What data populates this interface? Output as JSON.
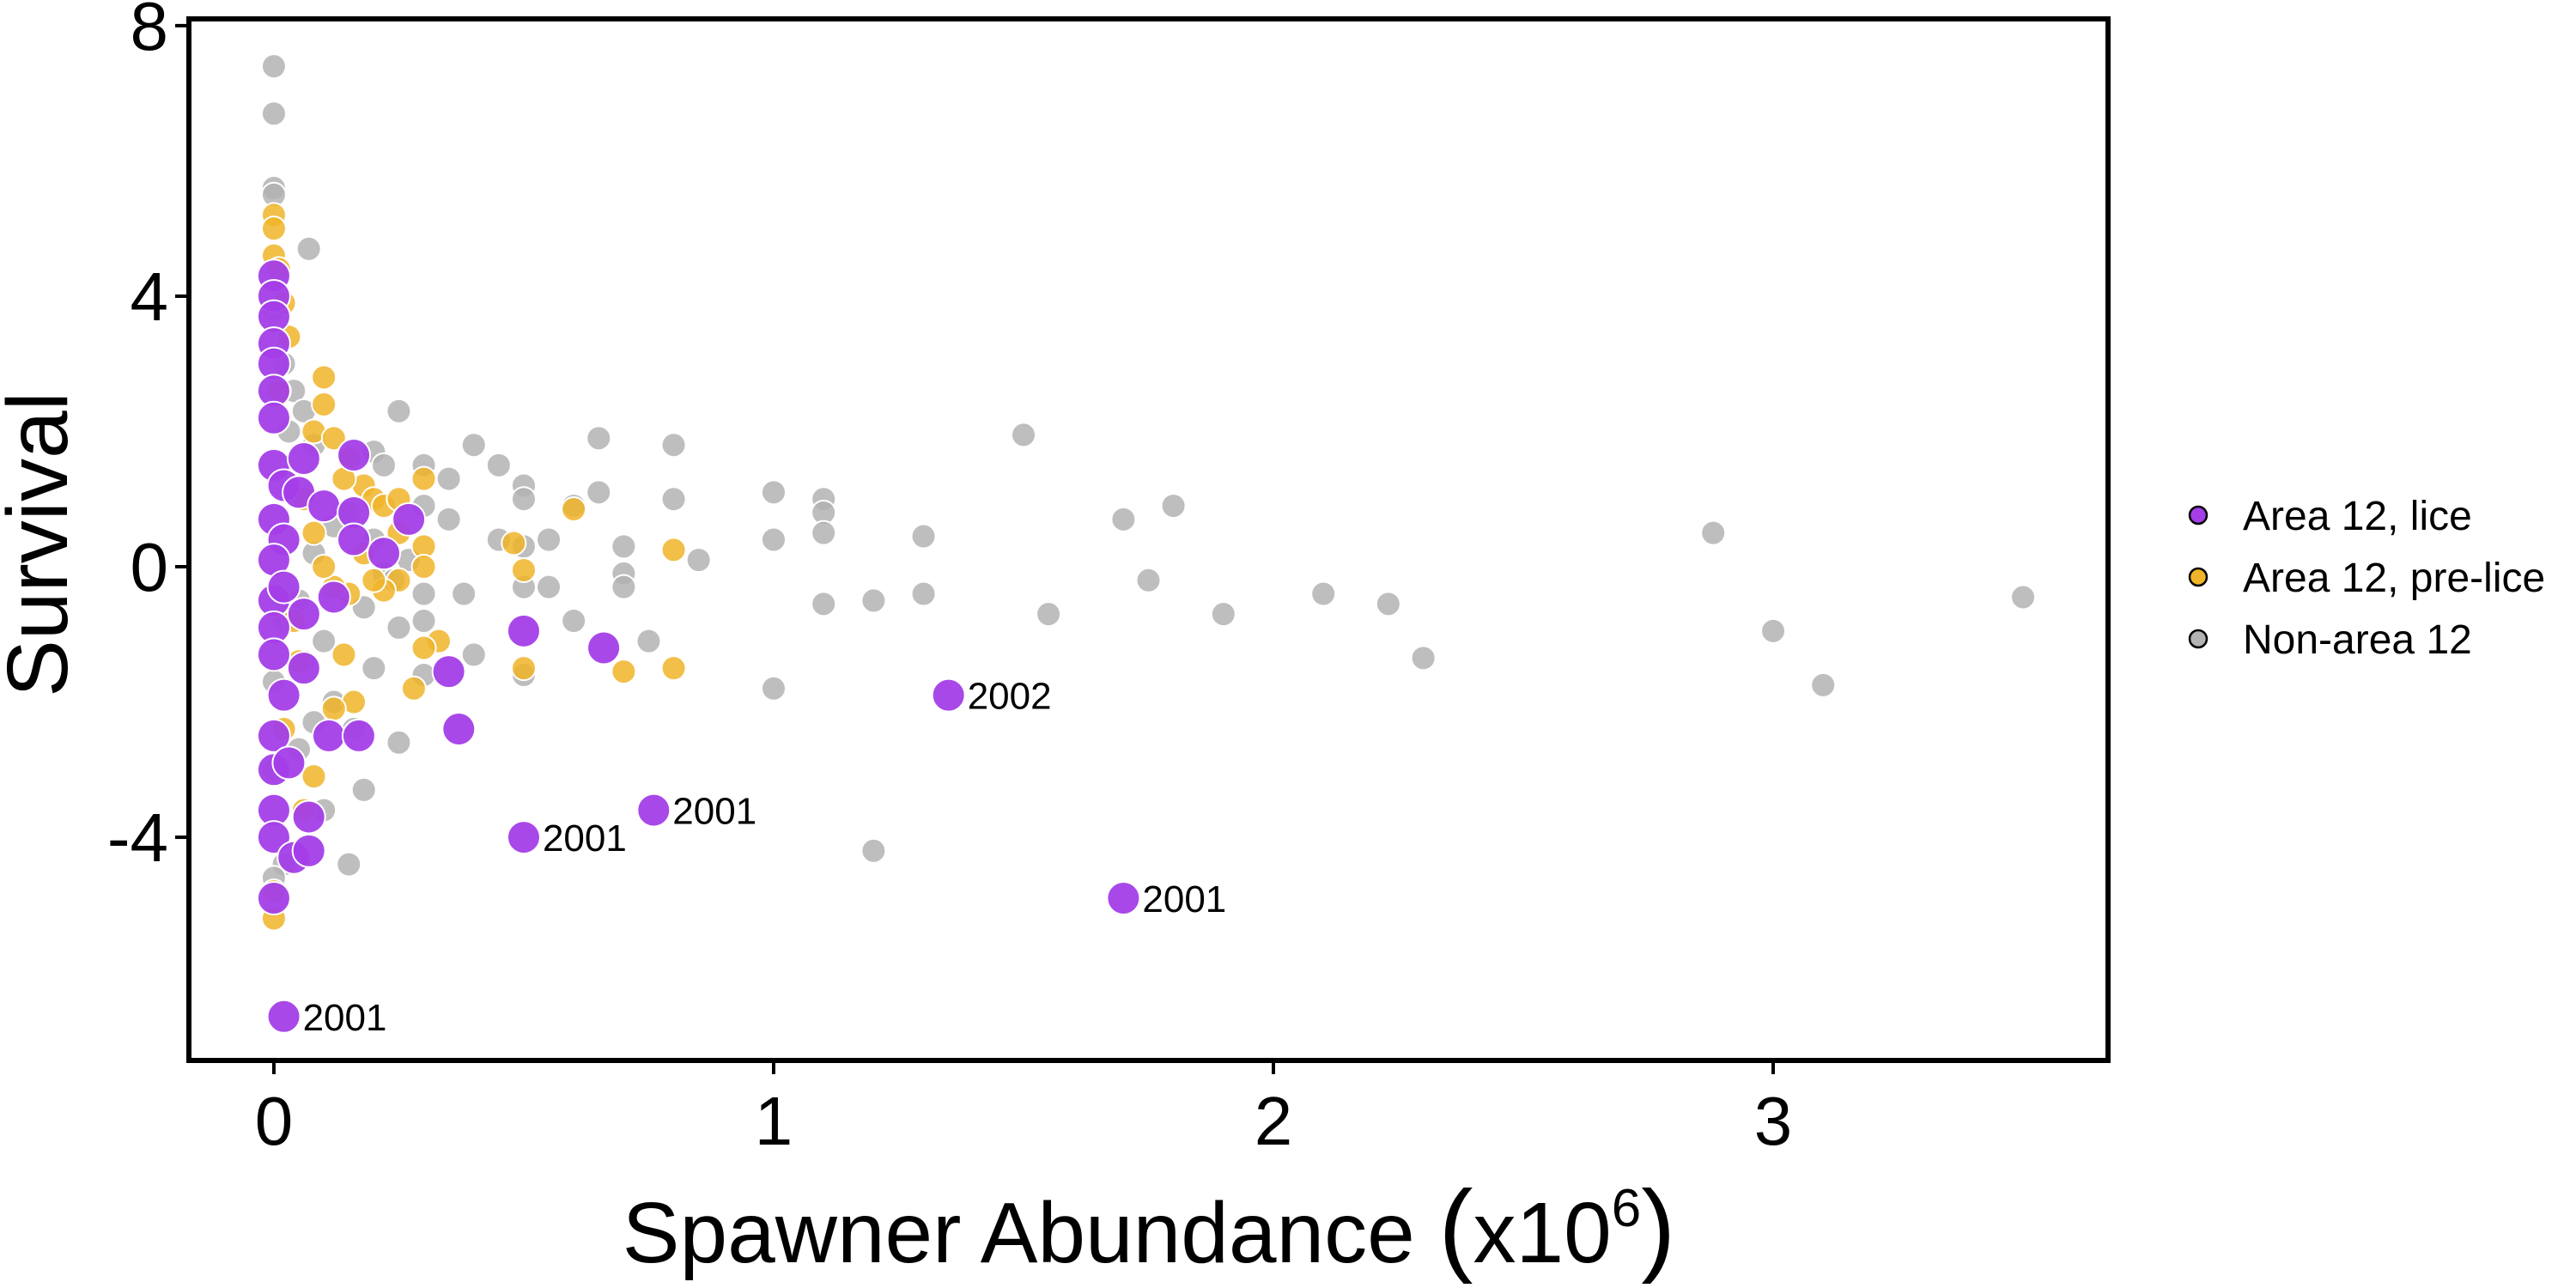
{
  "chart_data": {
    "type": "scatter",
    "title": "",
    "xlabel_main": "Spawner Abundance ",
    "xlabel_unit_prefix": "x10",
    "xlabel_unit_exponent": "6",
    "ylabel": "Survival",
    "xlim": [
      -0.17,
      3.67
    ],
    "ylim": [
      -7.3,
      8.1
    ],
    "xticks": [
      0,
      1,
      2,
      3
    ],
    "xtick_labels": [
      "0",
      "1",
      "2",
      "3"
    ],
    "yticks": [
      -4,
      0,
      4,
      8
    ],
    "ytick_labels": [
      "-4",
      "0",
      "4",
      "8"
    ],
    "grid": false,
    "legend_position": "right",
    "series": [
      {
        "name": "Non-area 12",
        "color": "#B3B3B3",
        "points": [
          [
            0.0,
            7.4
          ],
          [
            0.0,
            6.7
          ],
          [
            0.0,
            5.6
          ],
          [
            0.0,
            5.5
          ],
          [
            0.07,
            4.7
          ],
          [
            0.0,
            3.8
          ],
          [
            0.02,
            3.0
          ],
          [
            0.04,
            2.6
          ],
          [
            0.06,
            2.3
          ],
          [
            0.03,
            2.0
          ],
          [
            0.08,
            1.8
          ],
          [
            0.25,
            2.3
          ],
          [
            0.2,
            1.7
          ],
          [
            0.22,
            1.5
          ],
          [
            0.3,
            1.5
          ],
          [
            0.35,
            1.3
          ],
          [
            0.4,
            1.8
          ],
          [
            0.45,
            1.5
          ],
          [
            0.5,
            1.2
          ],
          [
            0.5,
            1.0
          ],
          [
            0.65,
            1.1
          ],
          [
            0.6,
            0.9
          ],
          [
            0.65,
            1.9
          ],
          [
            0.8,
            1.8
          ],
          [
            0.8,
            1.0
          ],
          [
            0.3,
            0.9
          ],
          [
            0.35,
            0.7
          ],
          [
            0.45,
            0.4
          ],
          [
            0.5,
            0.3
          ],
          [
            0.55,
            0.4
          ],
          [
            0.7,
            0.3
          ],
          [
            0.85,
            0.1
          ],
          [
            0.7,
            -0.1
          ],
          [
            0.7,
            -0.3
          ],
          [
            0.55,
            -0.3
          ],
          [
            0.5,
            -0.3
          ],
          [
            0.38,
            -0.4
          ],
          [
            0.3,
            -0.4
          ],
          [
            0.25,
            -0.9
          ],
          [
            0.3,
            -0.8
          ],
          [
            0.4,
            -1.3
          ],
          [
            0.6,
            -0.8
          ],
          [
            0.75,
            -1.1
          ],
          [
            0.5,
            -1.6
          ],
          [
            0.3,
            -1.6
          ],
          [
            0.2,
            -1.5
          ],
          [
            0.25,
            -2.6
          ],
          [
            0.18,
            -3.3
          ],
          [
            0.15,
            -4.4
          ],
          [
            0.1,
            -3.6
          ],
          [
            0.08,
            -2.3
          ],
          [
            0.05,
            -2.7
          ],
          [
            0.02,
            -4.4
          ],
          [
            0.0,
            -4.6
          ],
          [
            0.0,
            -3.0
          ],
          [
            0.0,
            -1.7
          ],
          [
            0.02,
            -0.8
          ],
          [
            0.05,
            -0.5
          ],
          [
            0.08,
            0.2
          ],
          [
            0.12,
            0.6
          ],
          [
            0.15,
            0.8
          ],
          [
            0.2,
            0.4
          ],
          [
            0.22,
            -0.1
          ],
          [
            0.18,
            -0.6
          ],
          [
            0.1,
            -1.1
          ],
          [
            0.06,
            -1.4
          ],
          [
            0.12,
            -2.0
          ],
          [
            0.16,
            -2.4
          ],
          [
            0.24,
            -0.2
          ],
          [
            0.27,
            0.1
          ],
          [
            1.0,
            1.1
          ],
          [
            1.1,
            1.0
          ],
          [
            1.1,
            0.8
          ],
          [
            1.1,
            0.5
          ],
          [
            1.0,
            0.4
          ],
          [
            1.1,
            -0.55
          ],
          [
            1.2,
            -0.5
          ],
          [
            1.3,
            0.45
          ],
          [
            1.3,
            -0.4
          ],
          [
            1.0,
            -1.8
          ],
          [
            1.2,
            -4.2
          ],
          [
            1.5,
            1.95
          ],
          [
            1.55,
            -0.7
          ],
          [
            1.7,
            0.7
          ],
          [
            1.75,
            -0.2
          ],
          [
            1.8,
            0.9
          ],
          [
            1.9,
            -0.7
          ],
          [
            2.1,
            -0.4
          ],
          [
            2.23,
            -0.55
          ],
          [
            2.3,
            -1.35
          ],
          [
            2.88,
            0.5
          ],
          [
            3.0,
            -0.95
          ],
          [
            3.1,
            -1.75
          ],
          [
            3.5,
            -0.45
          ]
        ]
      },
      {
        "name": "Area 12, pre-lice",
        "color": "#F0B429",
        "points": [
          [
            0.0,
            5.2
          ],
          [
            0.0,
            5.0
          ],
          [
            0.0,
            4.6
          ],
          [
            0.01,
            4.4
          ],
          [
            0.02,
            3.9
          ],
          [
            0.03,
            3.4
          ],
          [
            0.01,
            2.6
          ],
          [
            0.0,
            -5.2
          ],
          [
            0.0,
            -4.8
          ],
          [
            0.02,
            -2.4
          ],
          [
            0.1,
            2.8
          ],
          [
            0.1,
            2.4
          ],
          [
            0.08,
            2.0
          ],
          [
            0.12,
            1.9
          ],
          [
            0.15,
            1.6
          ],
          [
            0.18,
            1.2
          ],
          [
            0.2,
            1.0
          ],
          [
            0.22,
            0.9
          ],
          [
            0.25,
            1.0
          ],
          [
            0.3,
            1.3
          ],
          [
            0.25,
            0.5
          ],
          [
            0.3,
            0.3
          ],
          [
            0.3,
            0.0
          ],
          [
            0.25,
            -0.2
          ],
          [
            0.22,
            -0.35
          ],
          [
            0.2,
            -0.2
          ],
          [
            0.15,
            -0.4
          ],
          [
            0.12,
            -0.3
          ],
          [
            0.1,
            0.0
          ],
          [
            0.08,
            0.5
          ],
          [
            0.33,
            -1.1
          ],
          [
            0.3,
            -1.2
          ],
          [
            0.28,
            -1.8
          ],
          [
            0.14,
            -1.3
          ],
          [
            0.16,
            -2.0
          ],
          [
            0.12,
            -2.1
          ],
          [
            0.08,
            -3.1
          ],
          [
            0.06,
            -3.6
          ],
          [
            0.04,
            -0.8
          ],
          [
            0.05,
            -1.4
          ],
          [
            0.48,
            0.35
          ],
          [
            0.5,
            -0.05
          ],
          [
            0.5,
            -1.5
          ],
          [
            0.6,
            0.85
          ],
          [
            0.7,
            -1.55
          ],
          [
            0.8,
            0.25
          ],
          [
            0.8,
            -1.5
          ],
          [
            0.18,
            0.2
          ],
          [
            0.14,
            1.3
          ],
          [
            0.06,
            1.0
          ]
        ]
      },
      {
        "name": "Area 12, lice",
        "color": "#A43EE8",
        "points": [
          [
            0.0,
            4.3
          ],
          [
            0.0,
            4.0
          ],
          [
            0.0,
            3.7
          ],
          [
            0.0,
            3.3
          ],
          [
            0.0,
            3.0
          ],
          [
            0.0,
            2.6
          ],
          [
            0.0,
            2.2
          ],
          [
            0.0,
            1.5
          ],
          [
            0.02,
            1.2
          ],
          [
            0.0,
            0.7
          ],
          [
            0.02,
            0.4
          ],
          [
            0.0,
            0.1
          ],
          [
            0.0,
            -0.5
          ],
          [
            0.02,
            -0.3
          ],
          [
            0.0,
            -0.9
          ],
          [
            0.0,
            -1.3
          ],
          [
            0.02,
            -1.9
          ],
          [
            0.0,
            -2.5
          ],
          [
            0.0,
            -3.0
          ],
          [
            0.0,
            -3.6
          ],
          [
            0.0,
            -4.0
          ],
          [
            0.03,
            -2.9
          ],
          [
            0.04,
            -4.3
          ],
          [
            0.0,
            -4.9
          ],
          [
            0.06,
            1.6
          ],
          [
            0.05,
            1.1
          ],
          [
            0.1,
            0.9
          ],
          [
            0.16,
            1.65
          ],
          [
            0.16,
            0.8
          ],
          [
            0.16,
            0.4
          ],
          [
            0.22,
            0.2
          ],
          [
            0.27,
            0.7
          ],
          [
            0.06,
            -0.7
          ],
          [
            0.12,
            -0.45
          ],
          [
            0.06,
            -1.5
          ],
          [
            0.11,
            -2.5
          ],
          [
            0.17,
            -2.5
          ],
          [
            0.07,
            -3.7
          ],
          [
            0.07,
            -4.2
          ],
          [
            0.35,
            -1.55
          ],
          [
            0.37,
            -2.4
          ],
          [
            0.5,
            -0.95
          ],
          [
            0.66,
            -1.2
          ],
          [
            0.5,
            -4.0
          ],
          [
            0.76,
            -3.6
          ],
          [
            1.35,
            -1.9
          ],
          [
            1.7,
            -4.9
          ],
          [
            0.02,
            -6.65
          ]
        ]
      }
    ],
    "annotations": [
      {
        "label": "2002",
        "x": 1.35,
        "y": -1.9
      },
      {
        "label": "2001",
        "x": 0.76,
        "y": -3.6
      },
      {
        "label": "2001",
        "x": 0.5,
        "y": -4.0
      },
      {
        "label": "2001",
        "x": 1.7,
        "y": -4.9
      },
      {
        "label": "2001",
        "x": 0.02,
        "y": -6.65
      }
    ],
    "legend_entries": [
      {
        "label": "Area 12, lice",
        "color": "#A43EE8"
      },
      {
        "label": "Area 12, pre-lice",
        "color": "#F0B429"
      },
      {
        "label": "Non-area 12",
        "color": "#B3B3B3"
      }
    ]
  }
}
